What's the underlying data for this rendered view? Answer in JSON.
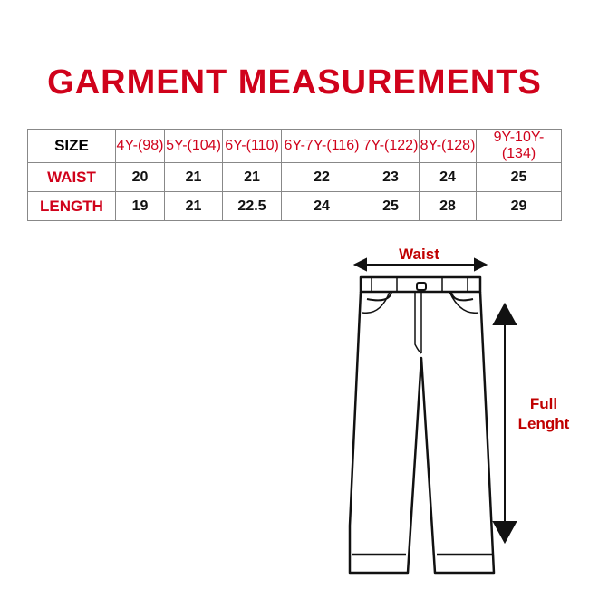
{
  "title": "GARMENT MEASUREMENTS",
  "table": {
    "row_labels": [
      "SIZE",
      "WAIST",
      "LENGTH"
    ],
    "sizes": [
      "4Y-(98)",
      "5Y-(104)",
      "6Y-(110)",
      "6Y-7Y-(116)",
      "7Y-(122)",
      "8Y-(128)",
      "9Y-10Y-(134)"
    ],
    "waist": [
      "20",
      "21",
      "21",
      "22",
      "23",
      "24",
      "25"
    ],
    "length": [
      "19",
      "21",
      "22.5",
      "24",
      "25",
      "28",
      "29"
    ]
  },
  "diagram": {
    "waist_label": "Waist",
    "length_label_1": "Full",
    "length_label_2": "Lenght"
  },
  "colors": {
    "accent": "#d0021b"
  }
}
